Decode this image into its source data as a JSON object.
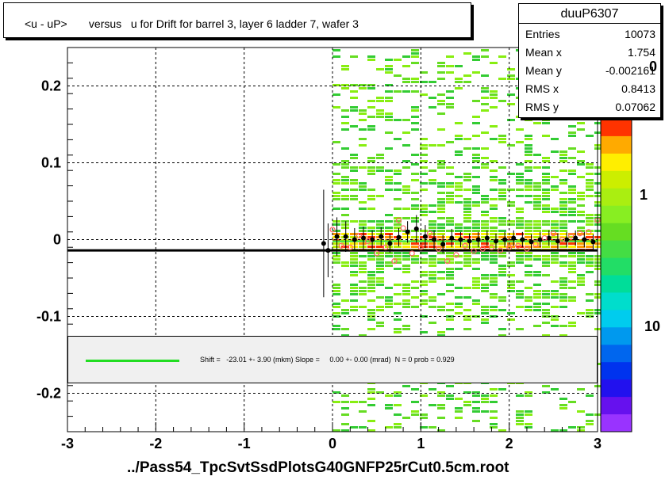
{
  "title": "<u - uP>       versus   u for Drift for barrel 3, layer 6 ladder 7, wafer 3",
  "stats": {
    "name": "duuP6307",
    "rows": [
      {
        "key": "Entries",
        "value": "10073"
      },
      {
        "key": "Mean x",
        "value": "1.754"
      },
      {
        "key": "Mean y",
        "value": "-0.002161"
      },
      {
        "key": "RMS x",
        "value": "0.8413"
      },
      {
        "key": "RMS y",
        "value": "0.07062"
      }
    ]
  },
  "fit_text": "Shift =   -23.01 +- 3.90 (mkm) Slope =     0.00 +- 0.00 (mrad)  N = 0 prob = 0.929",
  "xtitle": "../Pass54_TpcSvtSsdPlotsG40GNFP25rCut0.5cm.root",
  "colorbar_labels": [
    "1",
    "10"
  ],
  "colorbar_top_clip": "0",
  "colors": {
    "fit_line": "#22dd22",
    "profile_open": "#ff6666",
    "profile_filled": "#000000"
  },
  "chart_data": {
    "type": "heatmap",
    "title": "<u - uP>       versus   u for Drift for barrel 3, layer 6 ladder 7, wafer 3",
    "xlabel": "../Pass54_TpcSvtSsdPlotsG40GNFP25rCut0.5cm.root",
    "ylabel": "",
    "xlim": [
      -3,
      3
    ],
    "ylim": [
      -0.25,
      0.25
    ],
    "xticks": [
      "-3",
      "-2",
      "-1",
      "0",
      "1",
      "2",
      "3"
    ],
    "yticks": [
      "-0.2",
      "-0.1",
      "0",
      "0.1",
      "0.2"
    ],
    "x_ticks_values": [
      -3,
      -2,
      -1,
      0,
      1,
      2,
      3
    ],
    "y_ticks_values": [
      -0.2,
      -0.1,
      0,
      0.1,
      0.2
    ],
    "grid": true,
    "occupied_x_range": [
      0,
      3
    ],
    "fit_line": {
      "x": [
        -3,
        3
      ],
      "y": [
        -0.014,
        -0.014
      ]
    },
    "profile_filled": [
      {
        "x": -0.1,
        "y": -0.005,
        "err": 0.07
      },
      {
        "x": -0.05,
        "y": -0.014,
        "err": 0.035
      },
      {
        "x": 0.05,
        "y": 0.004,
        "err": 0.025
      },
      {
        "x": 0.15,
        "y": 0.004,
        "err": 0.02
      },
      {
        "x": 0.25,
        "y": 0.0,
        "err": 0.015
      },
      {
        "x": 0.35,
        "y": 0.002,
        "err": 0.015
      },
      {
        "x": 0.45,
        "y": 0.0,
        "err": 0.012
      },
      {
        "x": 0.55,
        "y": 0.004,
        "err": 0.012
      },
      {
        "x": 0.65,
        "y": -0.005,
        "err": 0.012
      },
      {
        "x": 0.75,
        "y": 0.003,
        "err": 0.012
      },
      {
        "x": 0.85,
        "y": 0.01,
        "err": 0.014
      },
      {
        "x": 0.95,
        "y": 0.014,
        "err": 0.018
      },
      {
        "x": 1.05,
        "y": 0.004,
        "err": 0.015
      },
      {
        "x": 1.15,
        "y": 0.0,
        "err": 0.012
      },
      {
        "x": 1.25,
        "y": -0.006,
        "err": 0.012
      },
      {
        "x": 1.35,
        "y": 0.002,
        "err": 0.012
      },
      {
        "x": 1.45,
        "y": 0.0,
        "err": 0.01
      },
      {
        "x": 1.55,
        "y": -0.002,
        "err": 0.01
      },
      {
        "x": 1.65,
        "y": 0.0,
        "err": 0.01
      },
      {
        "x": 1.75,
        "y": 0.002,
        "err": 0.01
      },
      {
        "x": 1.85,
        "y": -0.002,
        "err": 0.01
      },
      {
        "x": 1.95,
        "y": 0.0,
        "err": 0.01
      },
      {
        "x": 2.05,
        "y": 0.002,
        "err": 0.01
      },
      {
        "x": 2.15,
        "y": 0.0,
        "err": 0.01
      },
      {
        "x": 2.25,
        "y": -0.003,
        "err": 0.01
      },
      {
        "x": 2.35,
        "y": 0.0,
        "err": 0.01
      },
      {
        "x": 2.45,
        "y": 0.002,
        "err": 0.01
      },
      {
        "x": 2.55,
        "y": -0.002,
        "err": 0.01
      },
      {
        "x": 2.65,
        "y": 0.0,
        "err": 0.01
      },
      {
        "x": 2.75,
        "y": 0.002,
        "err": 0.01
      },
      {
        "x": 2.85,
        "y": 0.0,
        "err": 0.01
      },
      {
        "x": 2.95,
        "y": -0.003,
        "err": 0.01
      }
    ],
    "profile_open": [
      {
        "x": 0.0,
        "y": 0.013
      },
      {
        "x": 0.1,
        "y": -0.008
      },
      {
        "x": 0.2,
        "y": -0.01
      },
      {
        "x": 0.3,
        "y": 0.005
      },
      {
        "x": 0.4,
        "y": -0.002
      },
      {
        "x": 0.5,
        "y": -0.018
      },
      {
        "x": 0.6,
        "y": -0.01
      },
      {
        "x": 0.7,
        "y": -0.028
      },
      {
        "x": 0.75,
        "y": 0.025
      },
      {
        "x": 0.8,
        "y": 0.015
      },
      {
        "x": 0.9,
        "y": -0.018
      },
      {
        "x": 1.0,
        "y": -0.01
      },
      {
        "x": 1.1,
        "y": 0.008
      },
      {
        "x": 1.2,
        "y": -0.012
      },
      {
        "x": 1.3,
        "y": -0.028
      },
      {
        "x": 1.4,
        "y": -0.02
      },
      {
        "x": 1.5,
        "y": -0.008
      },
      {
        "x": 1.6,
        "y": -0.015
      },
      {
        "x": 1.7,
        "y": -0.012
      },
      {
        "x": 1.8,
        "y": -0.01
      },
      {
        "x": 1.9,
        "y": -0.014
      },
      {
        "x": 2.0,
        "y": -0.01
      },
      {
        "x": 2.1,
        "y": -0.008
      },
      {
        "x": 2.2,
        "y": -0.012
      },
      {
        "x": 2.3,
        "y": -0.006
      },
      {
        "x": 2.4,
        "y": 0.002
      },
      {
        "x": 2.5,
        "y": 0.008
      },
      {
        "x": 2.6,
        "y": 0.0
      },
      {
        "x": 2.7,
        "y": 0.005
      },
      {
        "x": 2.8,
        "y": 0.008
      },
      {
        "x": 2.9,
        "y": 0.01
      },
      {
        "x": 3.0,
        "y": 0.025
      }
    ]
  }
}
